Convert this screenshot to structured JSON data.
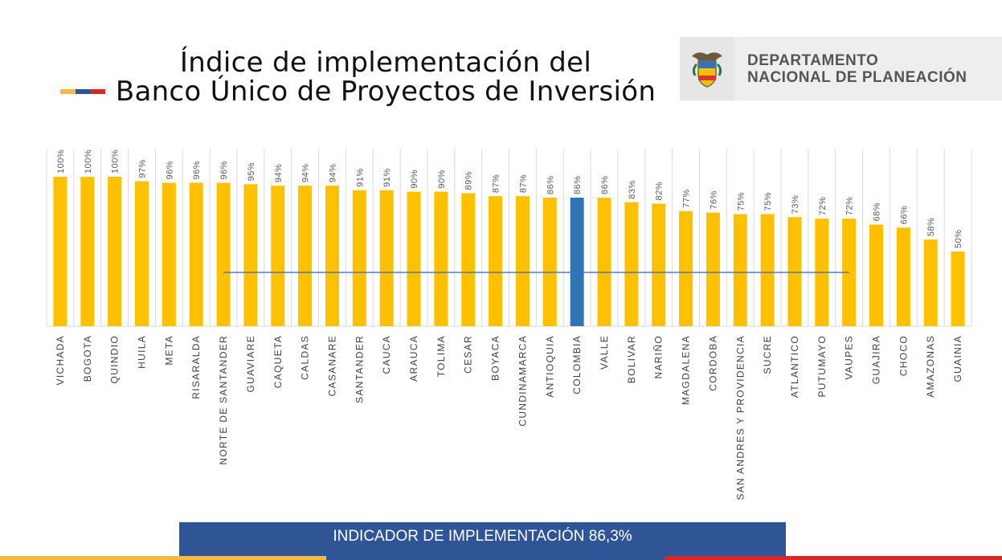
{
  "header": {
    "title_line1": "Índice de implementación del",
    "title_line2": "Banco Único de Proyectos de Inversión"
  },
  "logo": {
    "line1": "DEPARTAMENTO",
    "line2": "NACIONAL DE PLANEACIÓN",
    "seal_icon": "coat-of-arms-icon"
  },
  "colors": {
    "bar": "#FFC000",
    "highlight_bar": "#2E75B6",
    "reference_line": "#4472C4",
    "banner": "#2F5597",
    "flag_yellow": "#F4B942",
    "flag_blue": "#2F5597",
    "flag_red": "#D62828"
  },
  "chart_data": {
    "type": "bar",
    "categories": [
      "VICHADA",
      "BOGOTA",
      "QUINDIO",
      "HUILA",
      "META",
      "RISARALDA",
      "NORTE DE SANTANDER",
      "GUAVIARE",
      "CAQUETA",
      "CALDAS",
      "CASANARE",
      "SANTANDER",
      "CAUCA",
      "ARAUCA",
      "TOLIMA",
      "CESAR",
      "BOYACA",
      "CUNDINAMARCA",
      "ANTIOQUIA",
      "COLOMBIA",
      "VALLE",
      "BOLIVAR",
      "NARIÑO",
      "MAGDALENA",
      "CORDOBA",
      "SAN ANDRES Y PROVIDENCIA",
      "SUCRE",
      "ATLANTICO",
      "PUTUMAYO",
      "VAUPES",
      "GUAJIRA",
      "CHOCO",
      "AMAZONAS",
      "GUAINIA"
    ],
    "values": [
      100,
      100,
      100,
      97,
      96,
      96,
      96,
      95,
      94,
      94,
      94,
      91,
      91,
      90,
      90,
      89,
      87,
      87,
      86,
      86,
      86,
      83,
      82,
      77,
      76,
      75,
      75,
      73,
      72,
      72,
      68,
      66,
      58,
      50
    ],
    "labels": [
      "100%",
      "100%",
      "100%",
      "97%",
      "96%",
      "96%",
      "96%",
      "95%",
      "94%",
      "94%",
      "94%",
      "91%",
      "91%",
      "90%",
      "90%",
      "89%",
      "87%",
      "87%",
      "86%",
      "86%",
      "86%",
      "83%",
      "82%",
      "77%",
      "76%",
      "75%",
      "75%",
      "73%",
      "72%",
      "72%",
      "68%",
      "66%",
      "58%",
      "50%"
    ],
    "highlight": "COLOMBIA",
    "reference_line": {
      "value": 36,
      "from": "NORTE DE SANTANDER",
      "to": "VAUPES"
    },
    "ylim": [
      0,
      100
    ],
    "grid": "vertical",
    "title": "",
    "xlabel": "",
    "ylabel": ""
  },
  "footer": {
    "banner_text": "INDICADOR DE IMPLEMENTACIÓN 86,3%"
  }
}
